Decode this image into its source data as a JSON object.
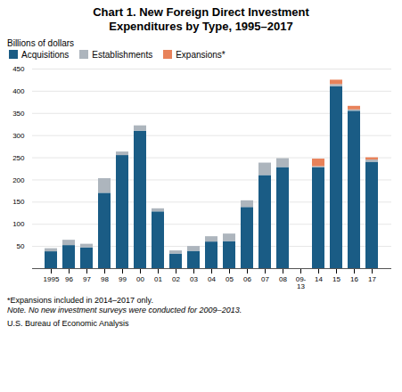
{
  "chart_data": {
    "type": "bar",
    "stacked": true,
    "title": "Chart 1. New Foreign Direct Investment\nExpenditures by Type, 1995–2017",
    "y_label": "Billions of dollars",
    "categories": [
      "1995",
      "96",
      "97",
      "98",
      "99",
      "00",
      "01",
      "02",
      "03",
      "04",
      "05",
      "06",
      "07",
      "08",
      "09-\n13",
      "14",
      "15",
      "16",
      "17"
    ],
    "series": [
      {
        "name": "Acquisitions",
        "color": "#1a5c85",
        "values": [
          38,
          52,
          47,
          170,
          255,
          310,
          128,
          33,
          39,
          60,
          61,
          138,
          210,
          228,
          0,
          228,
          410,
          355,
          240
        ]
      },
      {
        "name": "Establishments",
        "color": "#adb5bd",
        "values": [
          7,
          12,
          8,
          33,
          8,
          12,
          7,
          7,
          11,
          12,
          17,
          15,
          28,
          20,
          0,
          2,
          5,
          3,
          5
        ]
      },
      {
        "name": "Expansions*",
        "color": "#e8825a",
        "values": [
          0,
          0,
          0,
          0,
          0,
          0,
          0,
          0,
          0,
          0,
          0,
          0,
          0,
          0,
          0,
          17,
          10,
          8,
          5
        ]
      }
    ],
    "ylim": [
      0,
      450
    ],
    "yticks": [
      50,
      100,
      150,
      200,
      250,
      300,
      350,
      400,
      450
    ],
    "grid": true,
    "legend": "upper left",
    "annotations": [
      "*Expansions included in 2014–2017 only.",
      "Note. No new investment surveys were conducted for 2009–2013.",
      "U.S. Bureau of Economic Analysis"
    ]
  }
}
